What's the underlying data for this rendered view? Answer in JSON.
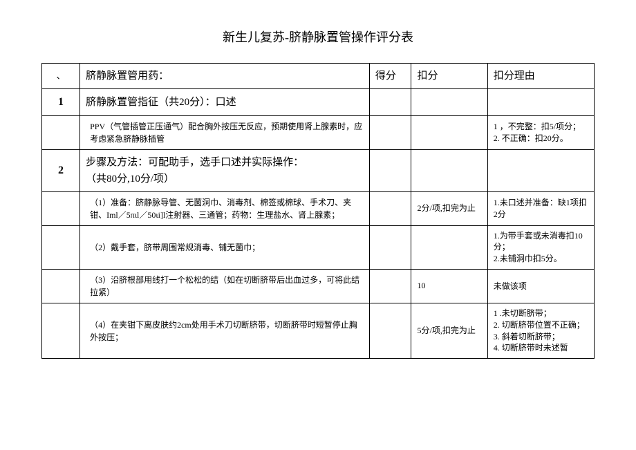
{
  "title": "新生儿复苏-脐静脉置管操作评分表",
  "header": {
    "idx": "、",
    "content": "脐静脉置管用药：",
    "score": "得分",
    "deduct": "扣分",
    "reason": "扣分理由"
  },
  "rows": [
    {
      "idx": "1",
      "content": "脐静脉置管指征（共20分）：口述",
      "score": "",
      "deduct": "",
      "reason": ""
    },
    {
      "idx": "",
      "content": "PPV（气管插管正压通气）配合胸外按压无反应，预期使用肾上腺素时，应考虑紧急脐静脉插管",
      "score": "",
      "deduct": "",
      "reason": "1     ，不完整：扣5/项分；\n2. 不正确：扣20分。",
      "sub": true
    },
    {
      "idx": "2",
      "content": "步骤及方法：可配助手，选手口述并实际操作：\n（共80分,10分/项）",
      "score": "",
      "deduct": "",
      "reason": "",
      "bigIdx": true
    },
    {
      "idx": "",
      "content": "（1）准备：脐静脉导管、无菌洞巾、消毒剂、棉签或棉球、手术刀、夹钳、Iml／5πιl／50ιi]l注射器、三通管；药物：生理盐水、肾上腺素；",
      "score": "",
      "deduct": "2分/项,扣完为止",
      "reason": "1.未口述并准备：缺1项扣2分",
      "sub": true
    },
    {
      "idx": "",
      "content": "（2）戴手套，脐带周围常规消毒、铺无菌巾；",
      "score": "",
      "deduct": "",
      "reason": "1.为带手套或未消毒扣10分；\n2.未铺洞巾扣5分。",
      "sub": true
    },
    {
      "idx": "",
      "content": "（3）沿脐根部用线打一个松松的结（如在切断脐带后出血过多，可将此结拉紧）",
      "score": "",
      "deduct": "10",
      "reason": "未做该项",
      "sub": true
    },
    {
      "idx": "",
      "content": "（4）在夹钳下离皮肤约2cm处用手术刀切断脐带，切断脐带时短暂停止胸外按压；",
      "score": "",
      "deduct": "5分/项,扣完为止",
      "reason": "1     .未切断脐带；\n2. 切断脐带位置不正确；\n3. 斜着切断脐带；\n4. 切断脐带时未述暂",
      "sub": true
    }
  ]
}
